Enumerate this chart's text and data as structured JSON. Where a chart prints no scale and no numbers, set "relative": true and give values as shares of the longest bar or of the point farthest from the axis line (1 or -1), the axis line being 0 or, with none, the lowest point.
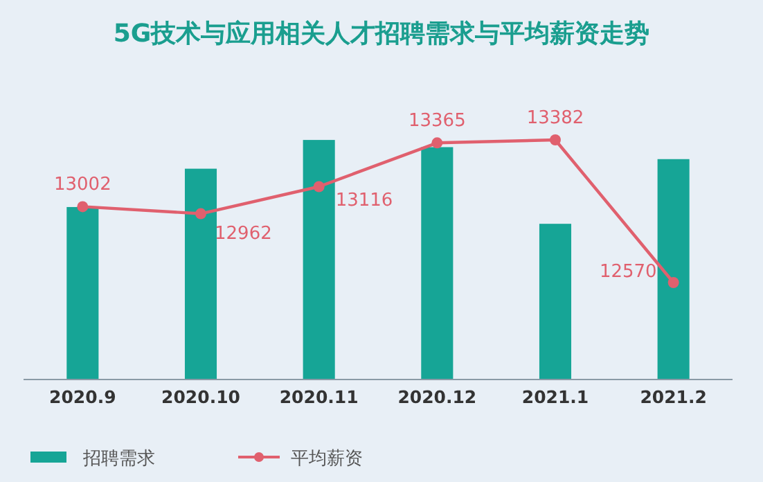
{
  "chart_data": [
    {
      "type": "bar",
      "title": "5G技术与应用相关人才招聘需求与平均薪资走势",
      "categories": [
        "2020.9",
        "2020.10",
        "2020.11",
        "2020.12",
        "2021.1",
        "2021.2"
      ],
      "relative": true,
      "series": [
        {
          "name": "招聘需求",
          "color": "#16a596",
          "values": [
            0.72,
            0.88,
            1,
            0.97,
            0.65,
            0.92
          ]
        }
      ],
      "legend": "bottom left"
    },
    {
      "type": "line",
      "categories": [
        "2020.9",
        "2020.10",
        "2020.11",
        "2020.12",
        "2021.1",
        "2021.2"
      ],
      "series": [
        {
          "name": "平均薪资",
          "color": "#e0606e",
          "values": [
            13002,
            12962,
            13116,
            13365,
            13382,
            12570
          ],
          "value_labels": [
            "13002",
            "12962",
            "13116",
            "13365",
            "13382",
            "12570"
          ]
        }
      ],
      "marker": "circle",
      "legend": "bottom left",
      "tick_labels": false
    }
  ]
}
